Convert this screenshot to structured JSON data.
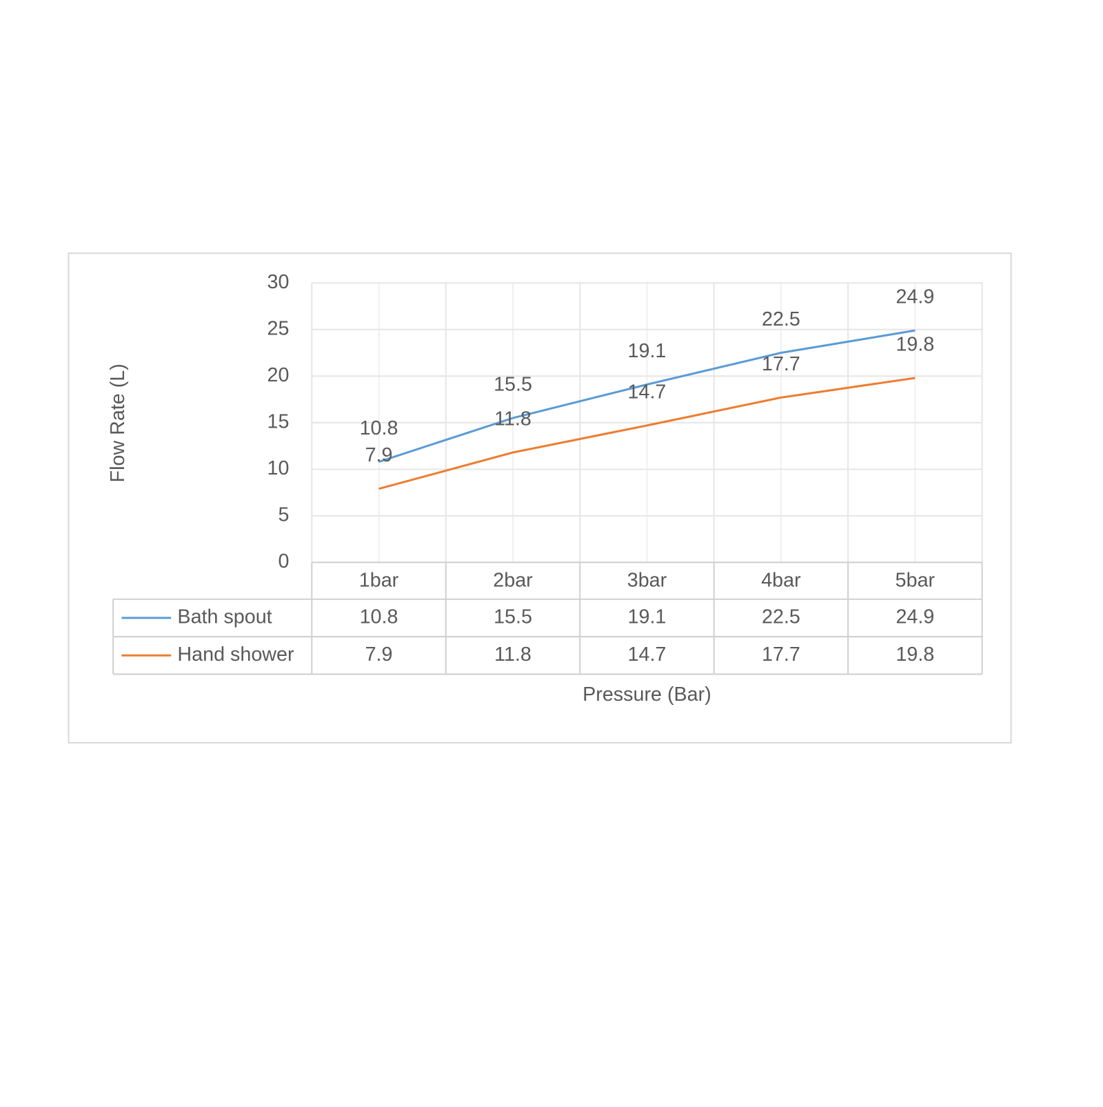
{
  "chart_data": {
    "type": "line",
    "x_label": "Pressure (Bar)",
    "y_label": "Flow Rate (L)",
    "categories": [
      "1bar",
      "2bar",
      "3bar",
      "4bar",
      "5bar"
    ],
    "series": [
      {
        "name": "Bath spout",
        "color": "#5b9bd5",
        "values": [
          10.8,
          15.5,
          19.1,
          22.5,
          24.9
        ]
      },
      {
        "name": "Hand shower",
        "color": "#ed7d31",
        "values": [
          7.9,
          11.8,
          14.7,
          17.7,
          19.8
        ]
      }
    ],
    "ylim": [
      0,
      30
    ],
    "yticks": [
      0,
      5,
      10,
      15,
      20,
      25,
      30
    ],
    "grid": true,
    "data_labels": true,
    "data_table": true
  }
}
